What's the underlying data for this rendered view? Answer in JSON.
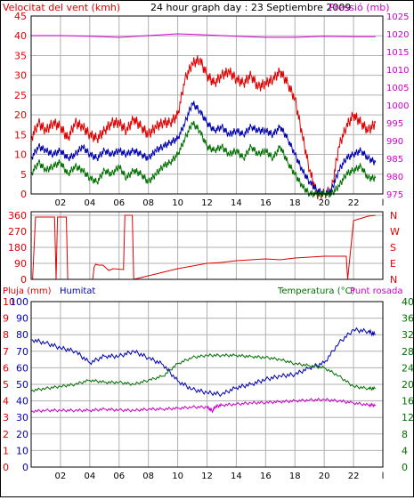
{
  "header": {
    "left_title": "Velocitat del vent (kmh)",
    "center_title": "24 hour graph day : 23 Septiembre 2009",
    "right_title": "Pressió (mb)"
  },
  "colors": {
    "frame": "#000000",
    "grid": "#b0b0b0",
    "red": "#e00000",
    "blue": "#0000b0",
    "green": "#007000",
    "magenta": "#cc00cc",
    "bg": "#ffffff"
  },
  "chart_data": [
    {
      "type": "line",
      "id": "wind_pressure",
      "xlabel": "",
      "x_ticks": [
        "02",
        "04",
        "06",
        "08",
        "10",
        "12",
        "14",
        "16",
        "18",
        "20",
        "22",
        "l"
      ],
      "left_axis": {
        "label": "Velocitat del vent (kmh)",
        "ticks": [
          0,
          5,
          10,
          15,
          20,
          25,
          30,
          35,
          40,
          45
        ],
        "range": [
          0,
          45
        ]
      },
      "right_axis": {
        "label": "Pressió (mb)",
        "ticks": [
          975,
          980,
          985,
          990,
          995,
          1000,
          1005,
          1010,
          1015,
          1020,
          1025
        ],
        "range": [
          975,
          1025
        ]
      },
      "series": [
        {
          "name": "Velocitat del vent (kmh)",
          "color": "red",
          "axis": "left",
          "x": [
            0,
            0.5,
            1,
            1.5,
            2,
            2.5,
            3,
            3.5,
            4,
            4.5,
            5,
            5.5,
            6,
            6.5,
            7,
            7.5,
            8,
            8.5,
            9,
            9.5,
            10,
            10.5,
            11,
            11.5,
            12,
            12.5,
            13,
            13.5,
            14,
            14.5,
            15,
            15.5,
            16,
            16.5,
            17,
            17.5,
            18,
            18.5,
            19,
            19.5,
            20,
            20.5,
            21,
            21.5,
            22,
            22.5,
            23,
            23.5
          ],
          "values": [
            14,
            18,
            16,
            18,
            17,
            14,
            18,
            17,
            15,
            14,
            16,
            18,
            18,
            16,
            19,
            17,
            15,
            17,
            18,
            18,
            20,
            29,
            33,
            34,
            30,
            28,
            30,
            31,
            29,
            28,
            30,
            27,
            28,
            29,
            31,
            28,
            24,
            15,
            6,
            0,
            0,
            1,
            12,
            17,
            20,
            18,
            16,
            18
          ]
        },
        {
          "name": "",
          "color": "blue",
          "axis": "left",
          "x": [
            0,
            0.5,
            1,
            1.5,
            2,
            2.5,
            3,
            3.5,
            4,
            4.5,
            5,
            5.5,
            6,
            6.5,
            7,
            7.5,
            8,
            8.5,
            9,
            9.5,
            10,
            10.5,
            11,
            11.5,
            12,
            12.5,
            13,
            13.5,
            14,
            14.5,
            15,
            15.5,
            16,
            16.5,
            17,
            17.5,
            18,
            18.5,
            19,
            19.5,
            20,
            20.5,
            21,
            21.5,
            22,
            22.5,
            23,
            23.5
          ],
          "values": [
            9,
            12,
            11,
            10,
            11,
            9,
            10,
            12,
            10,
            9,
            11,
            10,
            11,
            10,
            11,
            10,
            9,
            11,
            12,
            13,
            14,
            18,
            23,
            21,
            18,
            16,
            17,
            15,
            16,
            15,
            17,
            16,
            16,
            15,
            17,
            14,
            10,
            6,
            3,
            1,
            0,
            1,
            6,
            9,
            10,
            11,
            9,
            8
          ]
        },
        {
          "name": "",
          "color": "green",
          "axis": "left",
          "x": [
            0,
            0.5,
            1,
            1.5,
            2,
            2.5,
            3,
            3.5,
            4,
            4.5,
            5,
            5.5,
            6,
            6.5,
            7,
            7.5,
            8,
            8.5,
            9,
            9.5,
            10,
            10.5,
            11,
            11.5,
            12,
            12.5,
            13,
            13.5,
            14,
            14.5,
            15,
            15.5,
            16,
            16.5,
            17,
            17.5,
            18,
            18.5,
            19,
            19.5,
            20,
            20.5,
            21,
            21.5,
            22,
            22.5,
            23,
            23.5
          ],
          "values": [
            5,
            8,
            6,
            7,
            8,
            5,
            7,
            6,
            4,
            3,
            6,
            5,
            7,
            4,
            6,
            5,
            3,
            5,
            7,
            8,
            10,
            14,
            18,
            16,
            12,
            11,
            12,
            10,
            11,
            9,
            12,
            10,
            11,
            9,
            12,
            8,
            5,
            2,
            0,
            0,
            0,
            0,
            2,
            5,
            6,
            7,
            4,
            4
          ]
        },
        {
          "name": "Pressió (mb)",
          "color": "magenta",
          "axis": "right",
          "x": [
            0,
            2,
            4,
            6,
            8,
            10,
            12,
            14,
            16,
            18,
            20,
            22,
            23.5
          ],
          "values": [
            1019.5,
            1019.5,
            1019.3,
            1019.0,
            1019.5,
            1020.0,
            1019.7,
            1019.3,
            1019.0,
            1019.0,
            1019.3,
            1019.2,
            1019.2
          ]
        }
      ]
    },
    {
      "type": "line",
      "id": "wind_direction",
      "x_ticks": [
        "02",
        "04",
        "06",
        "08",
        "10",
        "12",
        "14",
        "16",
        "18",
        "20",
        "22",
        "l"
      ],
      "left_axis": {
        "ticks": [
          0,
          90,
          180,
          270,
          360
        ],
        "range": [
          0,
          380
        ]
      },
      "right_axis": {
        "ticks": [
          "N",
          "W",
          "S",
          "E",
          "N"
        ]
      },
      "series": [
        {
          "name": "",
          "color": "red",
          "x": [
            0,
            0.1,
            0.3,
            0.4,
            1.6,
            1.7,
            1.8,
            2.4,
            2.5,
            4.2,
            4.3,
            4.4,
            4.6,
            4.9,
            5.3,
            5.6,
            6.3,
            6.4,
            6.9,
            7.0,
            8,
            9,
            10,
            11,
            12,
            13,
            14,
            15,
            16,
            17,
            18,
            19,
            20,
            21,
            21.5,
            21.6,
            22,
            23,
            23.5
          ],
          "values": [
            0,
            0,
            350,
            350,
            350,
            0,
            350,
            350,
            0,
            0,
            70,
            85,
            80,
            80,
            50,
            60,
            55,
            360,
            360,
            0,
            20,
            40,
            60,
            75,
            90,
            95,
            105,
            110,
            115,
            110,
            120,
            125,
            130,
            130,
            130,
            0,
            330,
            355,
            360
          ]
        }
      ]
    },
    {
      "type": "line",
      "id": "rain_humidity_temp",
      "x_ticks": [
        "02",
        "04",
        "06",
        "08",
        "10",
        "12",
        "14",
        "16",
        "18",
        "20",
        "22",
        "l"
      ],
      "left_label_1": "Pluja (mm)",
      "left_label_2": "Humitat",
      "right_label_1": "Temperatura (°C)",
      "right_label_2": "Punt rosada",
      "pluja_axis": {
        "ticks": [
          0,
          1,
          2,
          3,
          4,
          5,
          6,
          7,
          8,
          9,
          10
        ],
        "range": [
          0,
          10
        ]
      },
      "humitat_axis": {
        "ticks": [
          0,
          10,
          20,
          30,
          40,
          50,
          60,
          70,
          80,
          90,
          100
        ],
        "range": [
          0,
          100
        ]
      },
      "temp_axis": {
        "ticks": [
          0,
          4,
          8,
          12,
          16,
          20,
          24,
          28,
          32,
          36,
          40
        ],
        "range": [
          0,
          40
        ]
      },
      "series": [
        {
          "name": "Humitat",
          "color": "blue",
          "axis": "humitat",
          "x": [
            0,
            1,
            2,
            3,
            4,
            5,
            6,
            7,
            8,
            9,
            10,
            11,
            12,
            13,
            14,
            15,
            16,
            17,
            18,
            19,
            20,
            21,
            22,
            23,
            23.5
          ],
          "values": [
            77,
            75,
            72,
            70,
            63,
            67,
            67,
            70,
            66,
            62,
            52,
            47,
            45,
            44,
            48,
            50,
            53,
            55,
            56,
            60,
            63,
            75,
            83,
            82,
            80
          ]
        },
        {
          "name": "Temperatura (°C)",
          "color": "green",
          "axis": "temp",
          "x": [
            0,
            1,
            2,
            3,
            4,
            5,
            6,
            7,
            8,
            9,
            10,
            11,
            12,
            13,
            14,
            15,
            16,
            17,
            18,
            19,
            20,
            21,
            22,
            23,
            23.5
          ],
          "values": [
            18.5,
            19,
            19.5,
            20,
            21,
            20.5,
            20.5,
            20,
            21,
            22,
            25,
            26.5,
            27,
            27,
            27,
            26.7,
            26.5,
            26,
            25,
            24.5,
            24,
            22,
            19.5,
            19,
            19
          ]
        },
        {
          "name": "Punt rosada",
          "color": "magenta",
          "axis": "temp",
          "x": [
            0,
            1,
            2,
            3,
            4,
            5,
            6,
            7,
            8,
            9,
            10,
            11,
            12,
            12.4,
            12.5,
            13,
            14,
            15,
            16,
            17,
            18,
            19,
            20,
            21,
            22,
            23,
            23.5
          ],
          "values": [
            13.5,
            13.7,
            13.7,
            13.7,
            13.7,
            14,
            13.8,
            13.7,
            14,
            14,
            14.2,
            14.5,
            14.5,
            13.5,
            14.5,
            15,
            15.2,
            15.5,
            15.6,
            15.8,
            16,
            16.2,
            16.3,
            16,
            15.5,
            15,
            15
          ]
        },
        {
          "name": "Pluja (mm)",
          "color": "red",
          "axis": "pluja",
          "x": [
            0,
            23.5
          ],
          "values": [
            0,
            0
          ]
        }
      ]
    }
  ]
}
